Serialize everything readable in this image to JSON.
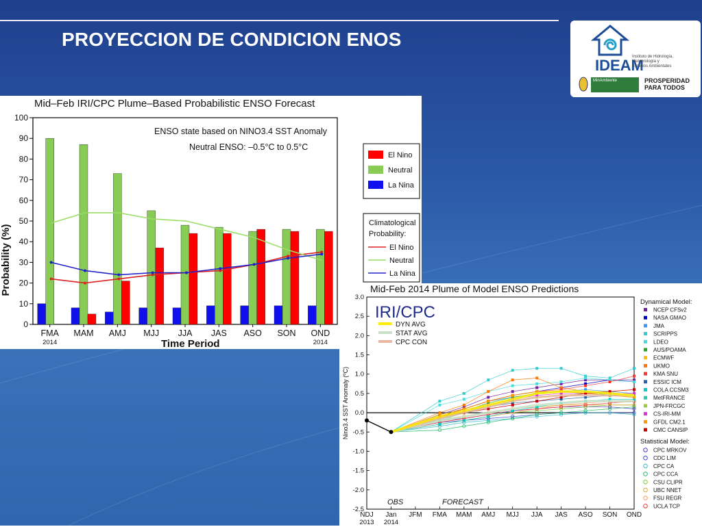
{
  "slide": {
    "title": "PROYECCION DE CONDICION ENOS",
    "logo": {
      "brand": "IDEAM",
      "subtitle_lines": [
        "Instituto de Hidrología,",
        "Meteorología y",
        "Estudios Ambientales"
      ],
      "ministry": "MinAmbiente",
      "slogan_lines": [
        "PROSPERIDAD",
        "PARA TODOS"
      ],
      "icon": "ideam-spiral-logo-icon"
    }
  },
  "colors": {
    "el_nino": "#ff0000",
    "neutral": "#88cc55",
    "la_nina": "#1010ee",
    "clim_el_nino": "#dd2020",
    "clim_neutral": "#99dd66",
    "clim_la_nina": "#2020cc",
    "slide_blue": "#2b5aa8"
  },
  "chart_data": [
    {
      "type": "bar",
      "title": "Mid–Feb IRI/CPC Plume–Based Probabilistic ENSO Forecast",
      "xlabel": "Time Period",
      "ylabel": "Probability (%)",
      "ylim": [
        0,
        100
      ],
      "yticks": [
        0,
        10,
        20,
        30,
        40,
        50,
        60,
        70,
        80,
        90,
        100
      ],
      "categories": [
        "FMA",
        "MAM",
        "AMJ",
        "MJJ",
        "JJA",
        "JAS",
        "ASO",
        "SON",
        "OND"
      ],
      "category_sublabels": [
        "2014",
        "",
        "",
        "",
        "",
        "",
        "",
        "",
        "2014"
      ],
      "annotation_line1": "ENSO state based on NINO3.4 SST Anomaly",
      "annotation_line2": "Neutral ENSO: –0.5°C to 0.5°C",
      "series": [
        {
          "name": "La Nina",
          "values": [
            10,
            8,
            6,
            8,
            8,
            9,
            9,
            9,
            9
          ]
        },
        {
          "name": "Neutral",
          "values": [
            90,
            87,
            73,
            55,
            48,
            47,
            45,
            46,
            46
          ]
        },
        {
          "name": "El Nino",
          "values": [
            0,
            5,
            21,
            37,
            44,
            44,
            46,
            45,
            45
          ]
        }
      ],
      "legend": [
        "El Nino",
        "Neutral",
        "La Nina"
      ],
      "legend_placement": "right",
      "climatology": {
        "heading_line1": "Climatological",
        "heading_line2": "Probability:",
        "series": [
          {
            "name": "El Nino",
            "values": [
              22,
              20,
              22,
              24,
              25,
              26,
              29,
              33,
              35
            ]
          },
          {
            "name": "Neutral",
            "values": [
              49,
              54,
              54,
              51,
              50,
              46,
              42,
              36,
              31
            ]
          },
          {
            "name": "La Nina",
            "values": [
              30,
              26,
              24,
              25,
              25,
              27,
              29,
              32,
              34
            ]
          }
        ]
      }
    },
    {
      "type": "line",
      "title": "Mid-Feb 2014 Plume of Model ENSO Predictions",
      "badge": "IRI/CPC",
      "ylabel": "Nino3.4 SST Anomaly (ºC)",
      "ylim": [
        -2.5,
        3.0
      ],
      "yticks": [
        "3.0",
        "2.5",
        "2.0",
        "1.5",
        "1.0",
        "0.5",
        "0.0",
        "-0.5",
        "-1.0",
        "-1.5",
        "-2.0",
        "-2.5"
      ],
      "x": [
        "NDJ",
        "Jan",
        "JFM",
        "FMA",
        "MAM",
        "AMJ",
        "MJJ",
        "JJA",
        "JAS",
        "ASO",
        "SON",
        "OND"
      ],
      "x_sublabels": [
        "2013",
        "2014"
      ],
      "obs_label": "OBS",
      "forecast_label": "FORECAST",
      "observed": [
        -0.2,
        -0.5
      ],
      "avg_legend": [
        {
          "name": "DYN AVG",
          "color": "#ffee00"
        },
        {
          "name": "STAT AVG",
          "color": "#c8e0c8"
        },
        {
          "name": "CPC CON",
          "color": "#e8b8a0"
        }
      ],
      "dyn_avg": [
        -0.1,
        0.05,
        0.2,
        0.35,
        0.5,
        0.55,
        0.55,
        0.5,
        0.45
      ],
      "stat_avg": [
        -0.2,
        -0.1,
        0.0,
        0.1,
        0.2,
        0.25,
        0.3,
        0.3,
        0.3
      ],
      "cpc_con": [
        -0.15,
        0.0,
        0.15,
        0.3,
        0.4,
        0.45,
        0.45,
        0.45,
        0.45
      ],
      "dynamical_heading": "Dynamical Model:",
      "statistical_heading": "Statistical Model:",
      "dynamical_models": [
        {
          "name": "NCEP CFSv2",
          "color": "#7020a0",
          "values": [
            -0.05,
            0.15,
            0.4,
            0.55,
            0.65,
            0.75,
            0.85,
            0.85,
            0.85
          ]
        },
        {
          "name": "NASA GMAO",
          "color": "#0000cc",
          "values": [
            -0.1,
            0.1,
            0.3,
            0.45,
            0.55,
            0.65,
            0.75,
            0.85,
            0.8
          ]
        },
        {
          "name": "JMA",
          "color": "#3399ff",
          "values": [
            -0.05,
            0.1,
            0.3,
            0.4,
            0.5,
            0.55,
            0.6,
            0.55,
            0.5
          ]
        },
        {
          "name": "SCRIPPS",
          "color": "#33cccc",
          "values": [
            0.3,
            0.5,
            0.85,
            1.1,
            1.15,
            1.15,
            0.95,
            0.9,
            1.15
          ]
        },
        {
          "name": "LDEO",
          "color": "#44dddd",
          "values": [
            0.2,
            0.35,
            0.55,
            0.7,
            0.75,
            0.8,
            0.9,
            0.85,
            0.8
          ]
        },
        {
          "name": "AUS/POAMA",
          "color": "#22aa22",
          "values": [
            -0.15,
            0.05,
            0.25,
            0.4,
            0.5,
            0.55,
            0.55,
            0.45,
            0.4
          ]
        },
        {
          "name": "ECMWF",
          "color": "#ffbb00",
          "values": [
            -0.1,
            0.1,
            0.3,
            0.45,
            0.55,
            0.55,
            0.5,
            0.45,
            0.4
          ]
        },
        {
          "name": "UKMO",
          "color": "#ff7700",
          "values": [
            0.0,
            0.2,
            0.55,
            0.85,
            0.9,
            0.65,
            0.55,
            0.55,
            0.6
          ]
        },
        {
          "name": "KMA SNU",
          "color": "#ff3333",
          "values": [
            -0.1,
            0.1,
            0.3,
            0.45,
            0.55,
            0.6,
            0.7,
            0.8,
            0.95
          ]
        },
        {
          "name": "ESSIC ICM",
          "color": "#2266aa",
          "values": [
            -0.1,
            0.0,
            0.15,
            0.25,
            0.3,
            0.35,
            0.4,
            0.45,
            0.45
          ]
        },
        {
          "name": "COLA CCSM3",
          "color": "#00cccc",
          "values": [
            -0.3,
            -0.2,
            -0.1,
            0.05,
            0.15,
            0.25,
            0.3,
            0.35,
            0.35
          ]
        },
        {
          "name": "MetFRANCE",
          "color": "#22ccaa",
          "values": [
            -0.2,
            0.0,
            0.2,
            0.35,
            0.5,
            0.55,
            0.55,
            0.5,
            0.45
          ]
        },
        {
          "name": "JPN-FRCGC",
          "color": "#99cc33",
          "values": [
            -0.15,
            0.0,
            0.15,
            0.3,
            0.4,
            0.45,
            0.5,
            0.5,
            0.45
          ]
        },
        {
          "name": "CS-IRI-MM",
          "color": "#dd33dd",
          "values": [
            -0.1,
            0.05,
            0.2,
            0.35,
            0.45,
            0.5,
            0.5,
            0.5,
            0.5
          ]
        },
        {
          "name": "GFDL CM2.1",
          "color": "#ff9900",
          "values": [
            -0.05,
            0.1,
            0.3,
            0.45,
            0.55,
            0.55,
            0.5,
            0.45,
            0.4
          ]
        },
        {
          "name": "CMC CANSIP",
          "color": "#cc0000",
          "values": [
            -0.1,
            0.0,
            0.1,
            0.2,
            0.3,
            0.4,
            0.5,
            0.55,
            0.6
          ]
        }
      ],
      "statistical_models": [
        {
          "name": "CPC MRKOV",
          "color": "#5533cc",
          "values": [
            -0.2,
            -0.15,
            -0.05,
            0.05,
            0.1,
            0.15,
            0.15,
            0.15,
            0.1
          ]
        },
        {
          "name": "CDC LIM",
          "color": "#3344dd",
          "values": [
            -0.25,
            -0.2,
            -0.15,
            -0.1,
            -0.05,
            0.0,
            0.0,
            0.0,
            0.0
          ]
        },
        {
          "name": "CPC CA",
          "color": "#33bbcc",
          "values": [
            -0.35,
            -0.25,
            -0.2,
            -0.15,
            -0.1,
            -0.05,
            0.0,
            0.0,
            -0.05
          ]
        },
        {
          "name": "CPC CCA",
          "color": "#22bb66",
          "values": [
            -0.45,
            -0.35,
            -0.25,
            -0.15,
            -0.05,
            0.0,
            0.05,
            0.1,
            0.15
          ]
        },
        {
          "name": "CSU CLIPR",
          "color": "#77cc33",
          "values": [
            -0.3,
            -0.2,
            -0.1,
            0.0,
            0.05,
            0.1,
            0.15,
            0.2,
            0.2
          ]
        },
        {
          "name": "UBC NNET",
          "color": "#ddaa33",
          "values": [
            -0.2,
            -0.1,
            0.0,
            0.1,
            0.15,
            0.2,
            0.2,
            0.2,
            0.2
          ]
        },
        {
          "name": "FSU REGR",
          "color": "#ff9955",
          "values": [
            -0.3,
            -0.2,
            -0.1,
            0.0,
            0.1,
            0.2,
            0.25,
            0.3,
            0.3
          ]
        },
        {
          "name": "UCLA TCP",
          "color": "#ee3333",
          "values": [
            -0.25,
            -0.15,
            -0.05,
            0.05,
            0.1,
            0.15,
            0.2,
            0.25,
            0.3
          ]
        }
      ]
    }
  ]
}
